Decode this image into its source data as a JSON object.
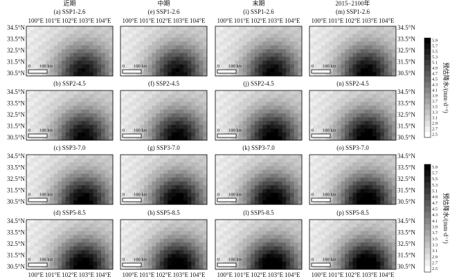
{
  "columns": [
    "近期",
    "中期",
    "末期",
    "2015−2100年"
  ],
  "panels": [
    [
      "(a) SSP1-2.6",
      "(e) SSP1-2.6",
      "(i) SSP1-2.6",
      "(m) SSP1-2.6"
    ],
    [
      "(b) SSP2-4.5",
      "(f) SSP2-4.5",
      "(j) SSP2-4.5",
      "(n) SSP2-4.5"
    ],
    [
      "(c) SSP3-7.0",
      "(g) SSP3-7.0",
      "(k) SSP3-7.0",
      "(o) SSP3-7.0"
    ],
    [
      "(d) SSP5-8.5",
      "(h) SSP5-8.5",
      "(l) SSP5-8.5",
      "(p) SSP5-8.5"
    ]
  ],
  "lon_labels": [
    "100°E",
    "101°E",
    "102°E",
    "103°E",
    "104°E"
  ],
  "lat_labels": [
    "34.5°N",
    "33.5°N",
    "32.5°N",
    "31.5°N",
    "30.5°N"
  ],
  "scale_bar": {
    "start": "0",
    "end": "100 km"
  },
  "colorbar": {
    "ticks": [
      "5.9",
      "5.7",
      "5.5",
      "5.3",
      "5.1",
      "4.9",
      "4.7",
      "4.5",
      "4.3",
      "4.1",
      "3.9",
      "3.7",
      "3.5",
      "3.3",
      "3.1",
      "2.9",
      "2.7",
      "2.5"
    ],
    "label": "预估降水/(mm·d⁻¹)"
  }
}
